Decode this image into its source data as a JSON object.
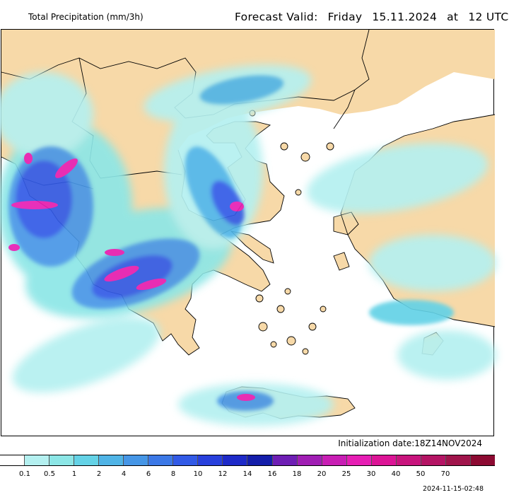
{
  "header": {
    "left_title": "Total Precipitation (mm/3h)",
    "forecast_label": "Forecast Valid:",
    "forecast_day": "Friday",
    "forecast_date": "15.11.2024",
    "forecast_at": "at",
    "forecast_time": "12 UTC"
  },
  "footer": {
    "initialization": "Initialization date:18Z14NOV2024",
    "timestamp": "2024-11-15-02:48"
  },
  "legend": {
    "colors": [
      "#ffffff",
      "#b4f0f0",
      "#8ce6e6",
      "#64d2e6",
      "#50b4e6",
      "#4696e6",
      "#3c78e6",
      "#325ae6",
      "#2840dc",
      "#1e2ac8",
      "#141eaa",
      "#6e1eb4",
      "#a01eb4",
      "#c81eb4",
      "#e61eb4",
      "#dc1496",
      "#c8147d",
      "#b41464",
      "#a0144b",
      "#8c0a32"
    ],
    "tick_labels": [
      "0.1",
      "0.5",
      "1",
      "2",
      "4",
      "6",
      "8",
      "10",
      "12",
      "14",
      "16",
      "18",
      "20",
      "25",
      "30",
      "40",
      "50",
      "70"
    ]
  },
  "map": {
    "land_color": "#f7d9a8",
    "sea_color": "#ffffff",
    "border_color": "#000000"
  }
}
